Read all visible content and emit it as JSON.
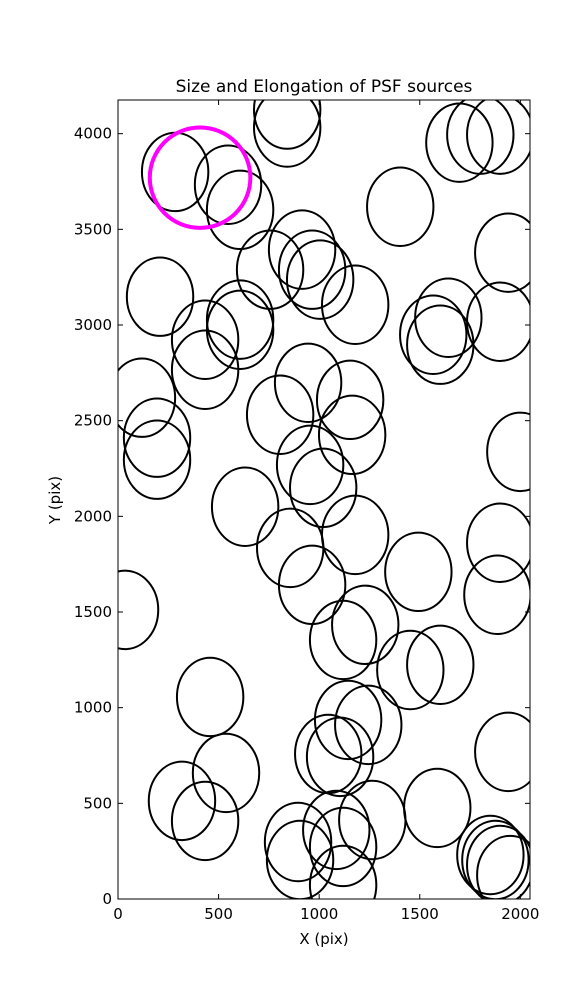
{
  "chart_data": {
    "type": "ellipse",
    "title": "Size and Elongation of PSF sources",
    "x_label": "X (pix)",
    "y_label": "Y (pix)",
    "xlim": [
      0,
      2048
    ],
    "ylim": [
      0,
      4176
    ],
    "xticks": [
      0,
      500,
      1000,
      1500,
      2000
    ],
    "yticks": [
      0,
      500,
      1000,
      1500,
      2000,
      2500,
      3000,
      3500,
      4000
    ],
    "series": [
      {
        "color": "#000000",
        "line_width": 2,
        "width": 330,
        "height": 410,
        "x": [
          841,
          841,
          284,
          547,
          607,
          1697,
          1801,
          1900,
          1403,
          756,
          915,
          965,
          1005,
          1179,
          209,
          433,
          607,
          607,
          433,
          1567,
          1642,
          1602,
          1940,
          1900,
          119,
          194,
          194,
          945,
          806,
          1154,
          1164,
          2000,
          955,
          1020,
          632,
          1179,
          856,
          1493,
          1900,
          1886,
          965,
          35,
          1229,
          1119,
          1453,
          1602,
          458,
          1144,
          1244,
          1045,
          1104,
          537,
          1940,
          318,
          433,
          1264,
          1587,
          905,
          1085,
          1119,
          895,
          1851,
          1876,
          1900,
          1950,
          1119
        ],
        "y": [
          4126,
          4032,
          3800,
          3733,
          3602,
          3953,
          3995,
          3995,
          3618,
          3289,
          3394,
          3289,
          3237,
          3106,
          3148,
          2923,
          3028,
          2975,
          2766,
          2949,
          3038,
          2897,
          3378,
          3017,
          2620,
          2411,
          2296,
          2698,
          2531,
          2609,
          2426,
          2337,
          2269,
          2149,
          2050,
          1903,
          1835,
          1710,
          1862,
          1590,
          1642,
          1511,
          1433,
          1354,
          1197,
          1224,
          1056,
          936,
          910,
          758,
          743,
          659,
          769,
          513,
          408,
          413,
          476,
          204,
          361,
          272,
          298,
          230,
          204,
          178,
          125,
          73
        ]
      },
      {
        "color": "#ff00ff",
        "line_width": 4,
        "width": 500,
        "height": 525,
        "x": [
          408
        ],
        "y": [
          3770
        ]
      }
    ]
  }
}
